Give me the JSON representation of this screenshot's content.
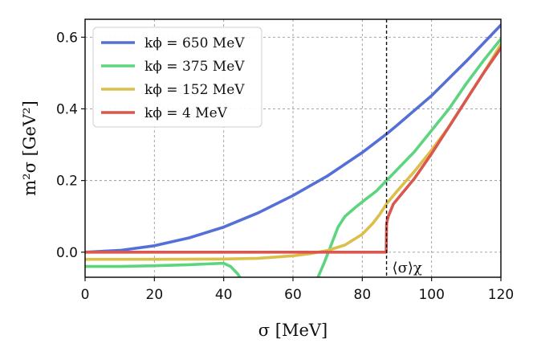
{
  "chart_data": {
    "type": "line",
    "xlabel": "σ [MeV]",
    "ylabel": "m²σ [GeV²]",
    "xlim": [
      0,
      120
    ],
    "ylim": [
      -0.07,
      0.65
    ],
    "xticks": [
      0,
      20,
      40,
      60,
      80,
      100,
      120
    ],
    "yticks": [
      0.0,
      0.2,
      0.4,
      0.6
    ],
    "xtick_labels": [
      "0",
      "20",
      "40",
      "60",
      "80",
      100,
      "120"
    ],
    "ytick_labels": [
      "0.0",
      "0.2",
      "0.4",
      "0.6"
    ],
    "grid": true,
    "legend_position": "top-left",
    "vline": {
      "x": 87,
      "label": "⟨σ⟩χ"
    },
    "series": [
      {
        "name": "kϕ = 650 MeV",
        "color": "#5470d6",
        "segments": [
          [
            [
              0,
              0.0
            ],
            [
              10,
              0.005
            ],
            [
              20,
              0.018
            ],
            [
              30,
              0.04
            ],
            [
              40,
              0.07
            ],
            [
              50,
              0.11
            ],
            [
              60,
              0.158
            ],
            [
              70,
              0.213
            ],
            [
              80,
              0.278
            ],
            [
              87,
              0.33
            ],
            [
              90,
              0.354
            ],
            [
              100,
              0.437
            ],
            [
              110,
              0.533
            ],
            [
              120,
              0.634
            ]
          ]
        ]
      },
      {
        "name": "kϕ = 375 MeV",
        "color": "#5dd57f",
        "segments": [
          [
            [
              0,
              -0.04
            ],
            [
              10,
              -0.04
            ],
            [
              20,
              -0.038
            ],
            [
              30,
              -0.035
            ],
            [
              40,
              -0.031
            ],
            [
              42,
              -0.04
            ],
            [
              44,
              -0.06
            ],
            [
              45,
              -0.075
            ]
          ],
          [
            [
              67,
              -0.075
            ],
            [
              69,
              -0.03
            ],
            [
              71,
              0.02
            ],
            [
              73,
              0.07
            ],
            [
              75,
              0.1
            ],
            [
              78,
              0.125
            ],
            [
              81,
              0.148
            ],
            [
              84,
              0.17
            ],
            [
              87,
              0.2
            ],
            [
              90,
              0.23
            ],
            [
              95,
              0.28
            ],
            [
              100,
              0.34
            ],
            [
              105,
              0.4
            ],
            [
              110,
              0.47
            ],
            [
              115,
              0.535
            ],
            [
              120,
              0.595
            ]
          ]
        ]
      },
      {
        "name": "kϕ = 152 MeV",
        "color": "#dcbf4a",
        "segments": [
          [
            [
              0,
              -0.02
            ],
            [
              20,
              -0.02
            ],
            [
              40,
              -0.019
            ],
            [
              50,
              -0.017
            ],
            [
              60,
              -0.01
            ],
            [
              65,
              -0.004
            ],
            [
              70,
              0.005
            ],
            [
              75,
              0.02
            ],
            [
              80,
              0.05
            ],
            [
              83,
              0.08
            ],
            [
              85,
              0.105
            ],
            [
              87,
              0.135
            ],
            [
              90,
              0.17
            ],
            [
              95,
              0.225
            ],
            [
              100,
              0.285
            ],
            [
              105,
              0.35
            ],
            [
              110,
              0.425
            ],
            [
              115,
              0.5
            ],
            [
              120,
              0.58
            ]
          ]
        ]
      },
      {
        "name": "kϕ = 4 MeV",
        "color": "#d9574f",
        "segments": [
          [
            [
              0,
              0.0
            ],
            [
              86.9,
              0.0
            ],
            [
              87,
              0.08
            ],
            [
              87.5,
              0.1
            ],
            [
              89,
              0.135
            ],
            [
              92,
              0.17
            ],
            [
              95,
              0.205
            ],
            [
              100,
              0.275
            ],
            [
              105,
              0.35
            ],
            [
              110,
              0.425
            ],
            [
              115,
              0.5
            ],
            [
              120,
              0.57
            ]
          ]
        ]
      }
    ]
  }
}
